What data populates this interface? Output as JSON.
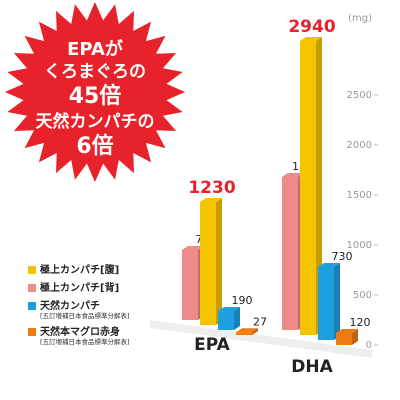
{
  "chart_data": {
    "type": "bar",
    "unit": "(mg)",
    "annotations": [
      "EPAが",
      "くろまぐろの",
      "45倍",
      "天然カンパチの",
      "6倍"
    ],
    "categories": [
      "EPA",
      "DHA"
    ],
    "series": [
      {
        "name": "極上カンパチ[腹]",
        "color": "#f5c400",
        "values": [
          1230,
          2940
        ]
      },
      {
        "name": "極上カンパチ[背]",
        "color": "#ee8a8a",
        "values": [
          700,
          1530
        ]
      },
      {
        "name": "天然カンパチ",
        "note": "[五訂増補日本食品標準分解表]",
        "color": "#1ea0e0",
        "values": [
          190,
          730
        ]
      },
      {
        "name": "天然本マグロ赤身",
        "note": "[五訂増補日本食品標準分解表]",
        "color": "#ee7a12",
        "values": [
          27,
          120
        ]
      }
    ],
    "ylim": [
      0,
      3000
    ],
    "yticks": [
      0,
      500,
      1000,
      1500,
      2000,
      2500
    ]
  }
}
